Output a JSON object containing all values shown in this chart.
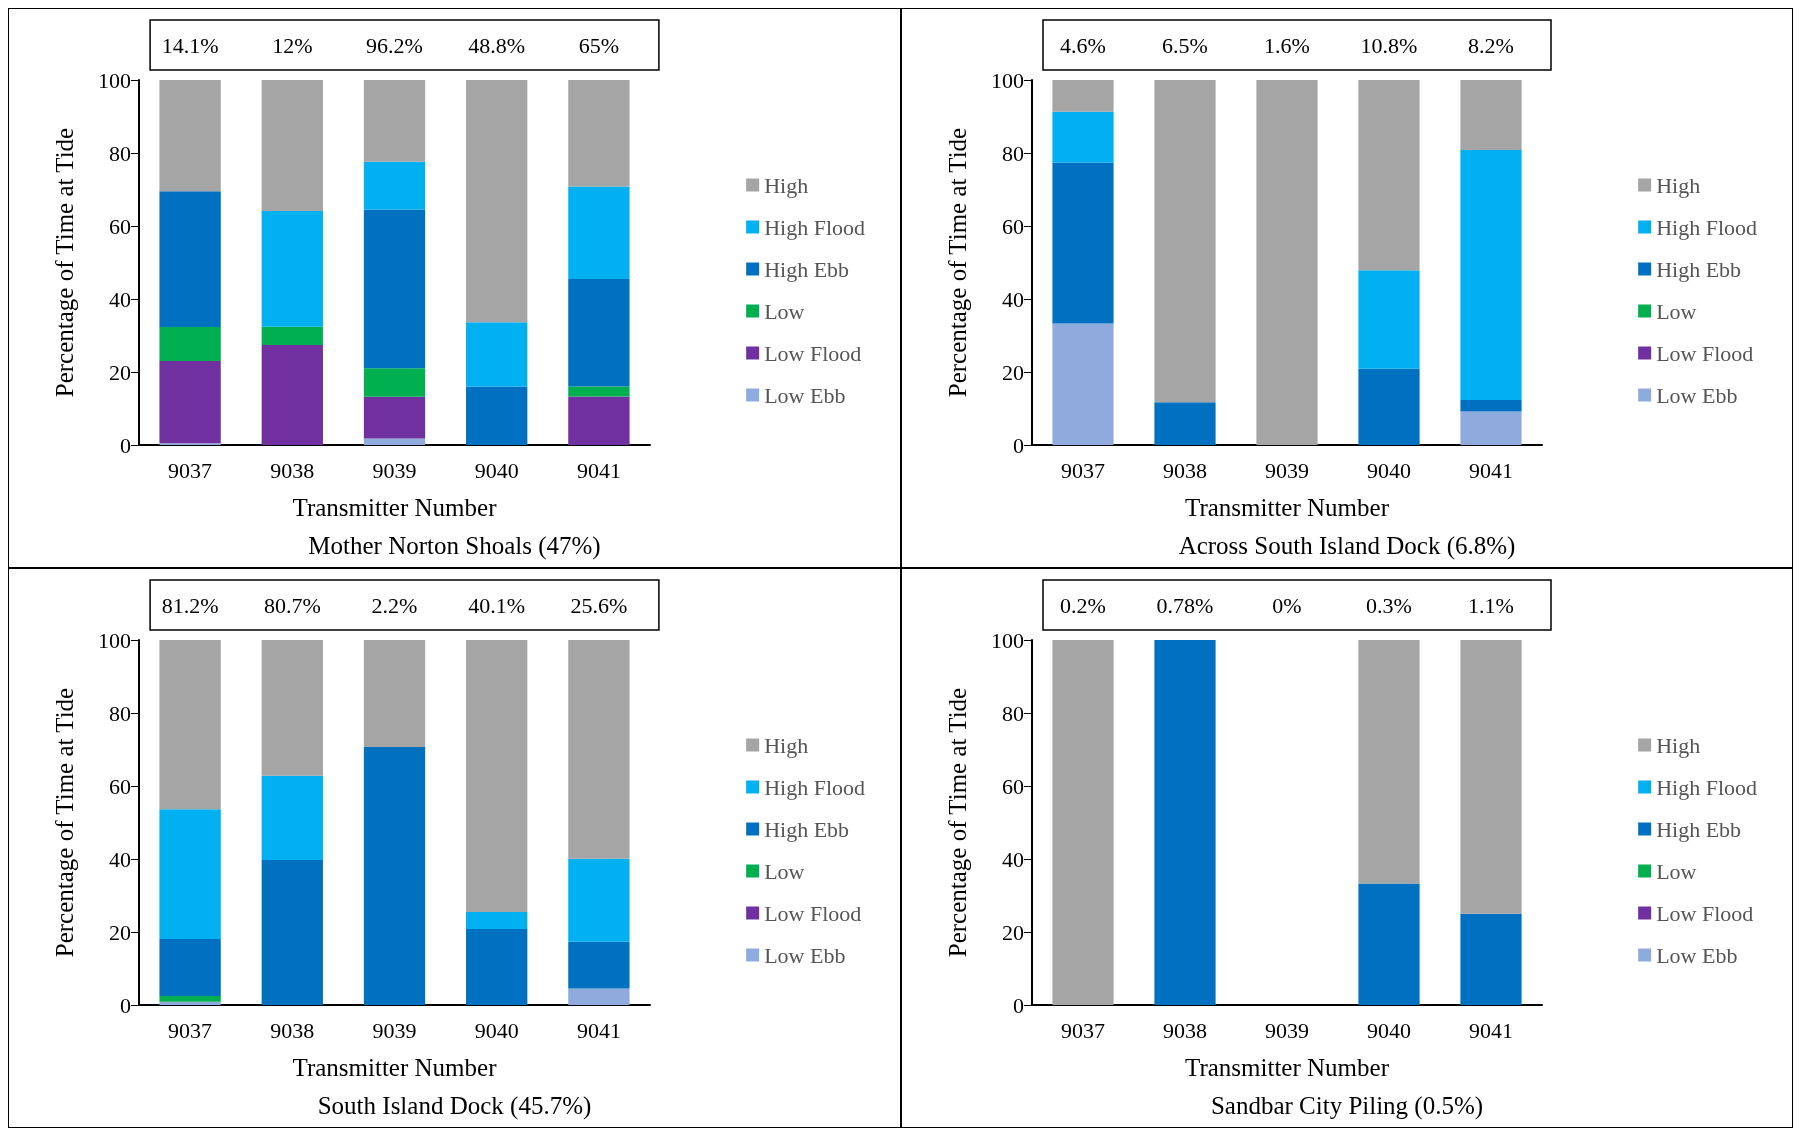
{
  "chart_data": [
    {
      "type": "bar",
      "stacked": true,
      "title": "Mother Norton Shoals (47%)",
      "xlabel": "Transmitter Number",
      "ylabel": "Percentage of Time at Tide",
      "categories": [
        "9037",
        "9038",
        "9039",
        "9040",
        "9041"
      ],
      "ylim": [
        0,
        100
      ],
      "yticks": [
        0,
        20,
        40,
        60,
        80,
        100
      ],
      "grid": false,
      "legend": "right",
      "series": [
        {
          "name": "Low Ebb",
          "color": "#8faadc",
          "values": [
            0.5,
            0,
            1.8,
            0,
            0
          ]
        },
        {
          "name": "Low Flood",
          "color": "#7030a0",
          "values": [
            22.5,
            27.4,
            11.4,
            0,
            13.3
          ]
        },
        {
          "name": "Low",
          "color": "#00b050",
          "values": [
            9.3,
            5,
            7.8,
            0,
            2.7
          ]
        },
        {
          "name": "High Ebb",
          "color": "#0070c0",
          "values": [
            37.2,
            0,
            43.5,
            16,
            29.5
          ]
        },
        {
          "name": "High Flood",
          "color": "#00b0f0",
          "values": [
            0,
            31.7,
            13.1,
            17.6,
            25.3
          ]
        },
        {
          "name": "High",
          "color": "#a5a5a5",
          "values": [
            30.5,
            35.9,
            22.4,
            66.4,
            29.2
          ]
        }
      ],
      "annotations": [
        "14.1%",
        "12%",
        "96.2%",
        "48.8%",
        "65%"
      ]
    },
    {
      "type": "bar",
      "stacked": true,
      "title": "Across South Island Dock (6.8%)",
      "xlabel": "Transmitter Number",
      "ylabel": "Percentage of Time at Tide",
      "categories": [
        "9037",
        "9038",
        "9039",
        "9040",
        "9041"
      ],
      "ylim": [
        0,
        100
      ],
      "yticks": [
        0,
        20,
        40,
        60,
        80,
        100
      ],
      "grid": false,
      "legend": "right",
      "series": [
        {
          "name": "Low Ebb",
          "color": "#8faadc",
          "values": [
            33.3,
            0,
            0,
            0,
            9.2
          ]
        },
        {
          "name": "Low Flood",
          "color": "#7030a0",
          "values": [
            0,
            0,
            0,
            0,
            0
          ]
        },
        {
          "name": "Low",
          "color": "#00b050",
          "values": [
            0,
            0,
            0,
            0,
            0
          ]
        },
        {
          "name": "High Ebb",
          "color": "#0070c0",
          "values": [
            44.1,
            11.7,
            0,
            20.9,
            3.1
          ]
        },
        {
          "name": "High Flood",
          "color": "#00b0f0",
          "values": [
            13.9,
            0,
            0,
            27,
            68.5
          ]
        },
        {
          "name": "High",
          "color": "#a5a5a5",
          "values": [
            8.7,
            88.3,
            100,
            52.1,
            19.2
          ]
        }
      ],
      "annotations": [
        "4.6%",
        "6.5%",
        "1.6%",
        "10.8%",
        "8.2%"
      ]
    },
    {
      "type": "bar",
      "stacked": true,
      "title": "South Island Dock (45.7%)",
      "xlabel": "Transmitter Number",
      "ylabel": "Percentage of Time at Tide",
      "categories": [
        "9037",
        "9038",
        "9039",
        "9040",
        "9041"
      ],
      "ylim": [
        0,
        100
      ],
      "yticks": [
        0,
        20,
        40,
        60,
        80,
        100
      ],
      "grid": false,
      "legend": "right",
      "series": [
        {
          "name": "Low Ebb",
          "color": "#8faadc",
          "values": [
            0.9,
            0,
            0,
            0,
            4.5
          ]
        },
        {
          "name": "Low Flood",
          "color": "#7030a0",
          "values": [
            0,
            0,
            0,
            0,
            0
          ]
        },
        {
          "name": "Low",
          "color": "#00b050",
          "values": [
            1.6,
            0,
            0,
            0,
            0
          ]
        },
        {
          "name": "High Ebb",
          "color": "#0070c0",
          "values": [
            15.6,
            39.7,
            70.7,
            20.8,
            12.8
          ]
        },
        {
          "name": "High Flood",
          "color": "#00b0f0",
          "values": [
            35.5,
            23.1,
            0,
            4.7,
            22.8
          ]
        },
        {
          "name": "High",
          "color": "#a5a5a5",
          "values": [
            46.4,
            37.2,
            29.3,
            74.5,
            59.9
          ]
        }
      ],
      "annotations": [
        "81.2%",
        "80.7%",
        "2.2%",
        "40.1%",
        "25.6%"
      ]
    },
    {
      "type": "bar",
      "stacked": true,
      "title": "Sandbar City Piling (0.5%)",
      "xlabel": "Transmitter Number",
      "ylabel": "Percentage of Time at Tide",
      "categories": [
        "9037",
        "9038",
        "9039",
        "9040",
        "9041"
      ],
      "ylim": [
        0,
        100
      ],
      "yticks": [
        0,
        20,
        40,
        60,
        80,
        100
      ],
      "grid": false,
      "legend": "right",
      "series": [
        {
          "name": "Low Ebb",
          "color": "#8faadc",
          "values": [
            0,
            0,
            0,
            0,
            0
          ]
        },
        {
          "name": "Low Flood",
          "color": "#7030a0",
          "values": [
            0,
            0,
            0,
            0,
            0
          ]
        },
        {
          "name": "Low",
          "color": "#00b050",
          "values": [
            0,
            0,
            0,
            0,
            0
          ]
        },
        {
          "name": "High Ebb",
          "color": "#0070c0",
          "values": [
            0,
            100,
            0,
            33.3,
            25
          ]
        },
        {
          "name": "High Flood",
          "color": "#00b0f0",
          "values": [
            0,
            0,
            0,
            0,
            0
          ]
        },
        {
          "name": "High",
          "color": "#a5a5a5",
          "values": [
            100,
            0,
            0,
            66.7,
            75
          ]
        }
      ],
      "annotations": [
        "0.2%",
        "0.78%",
        "0%",
        "0.3%",
        "1.1%"
      ]
    }
  ]
}
